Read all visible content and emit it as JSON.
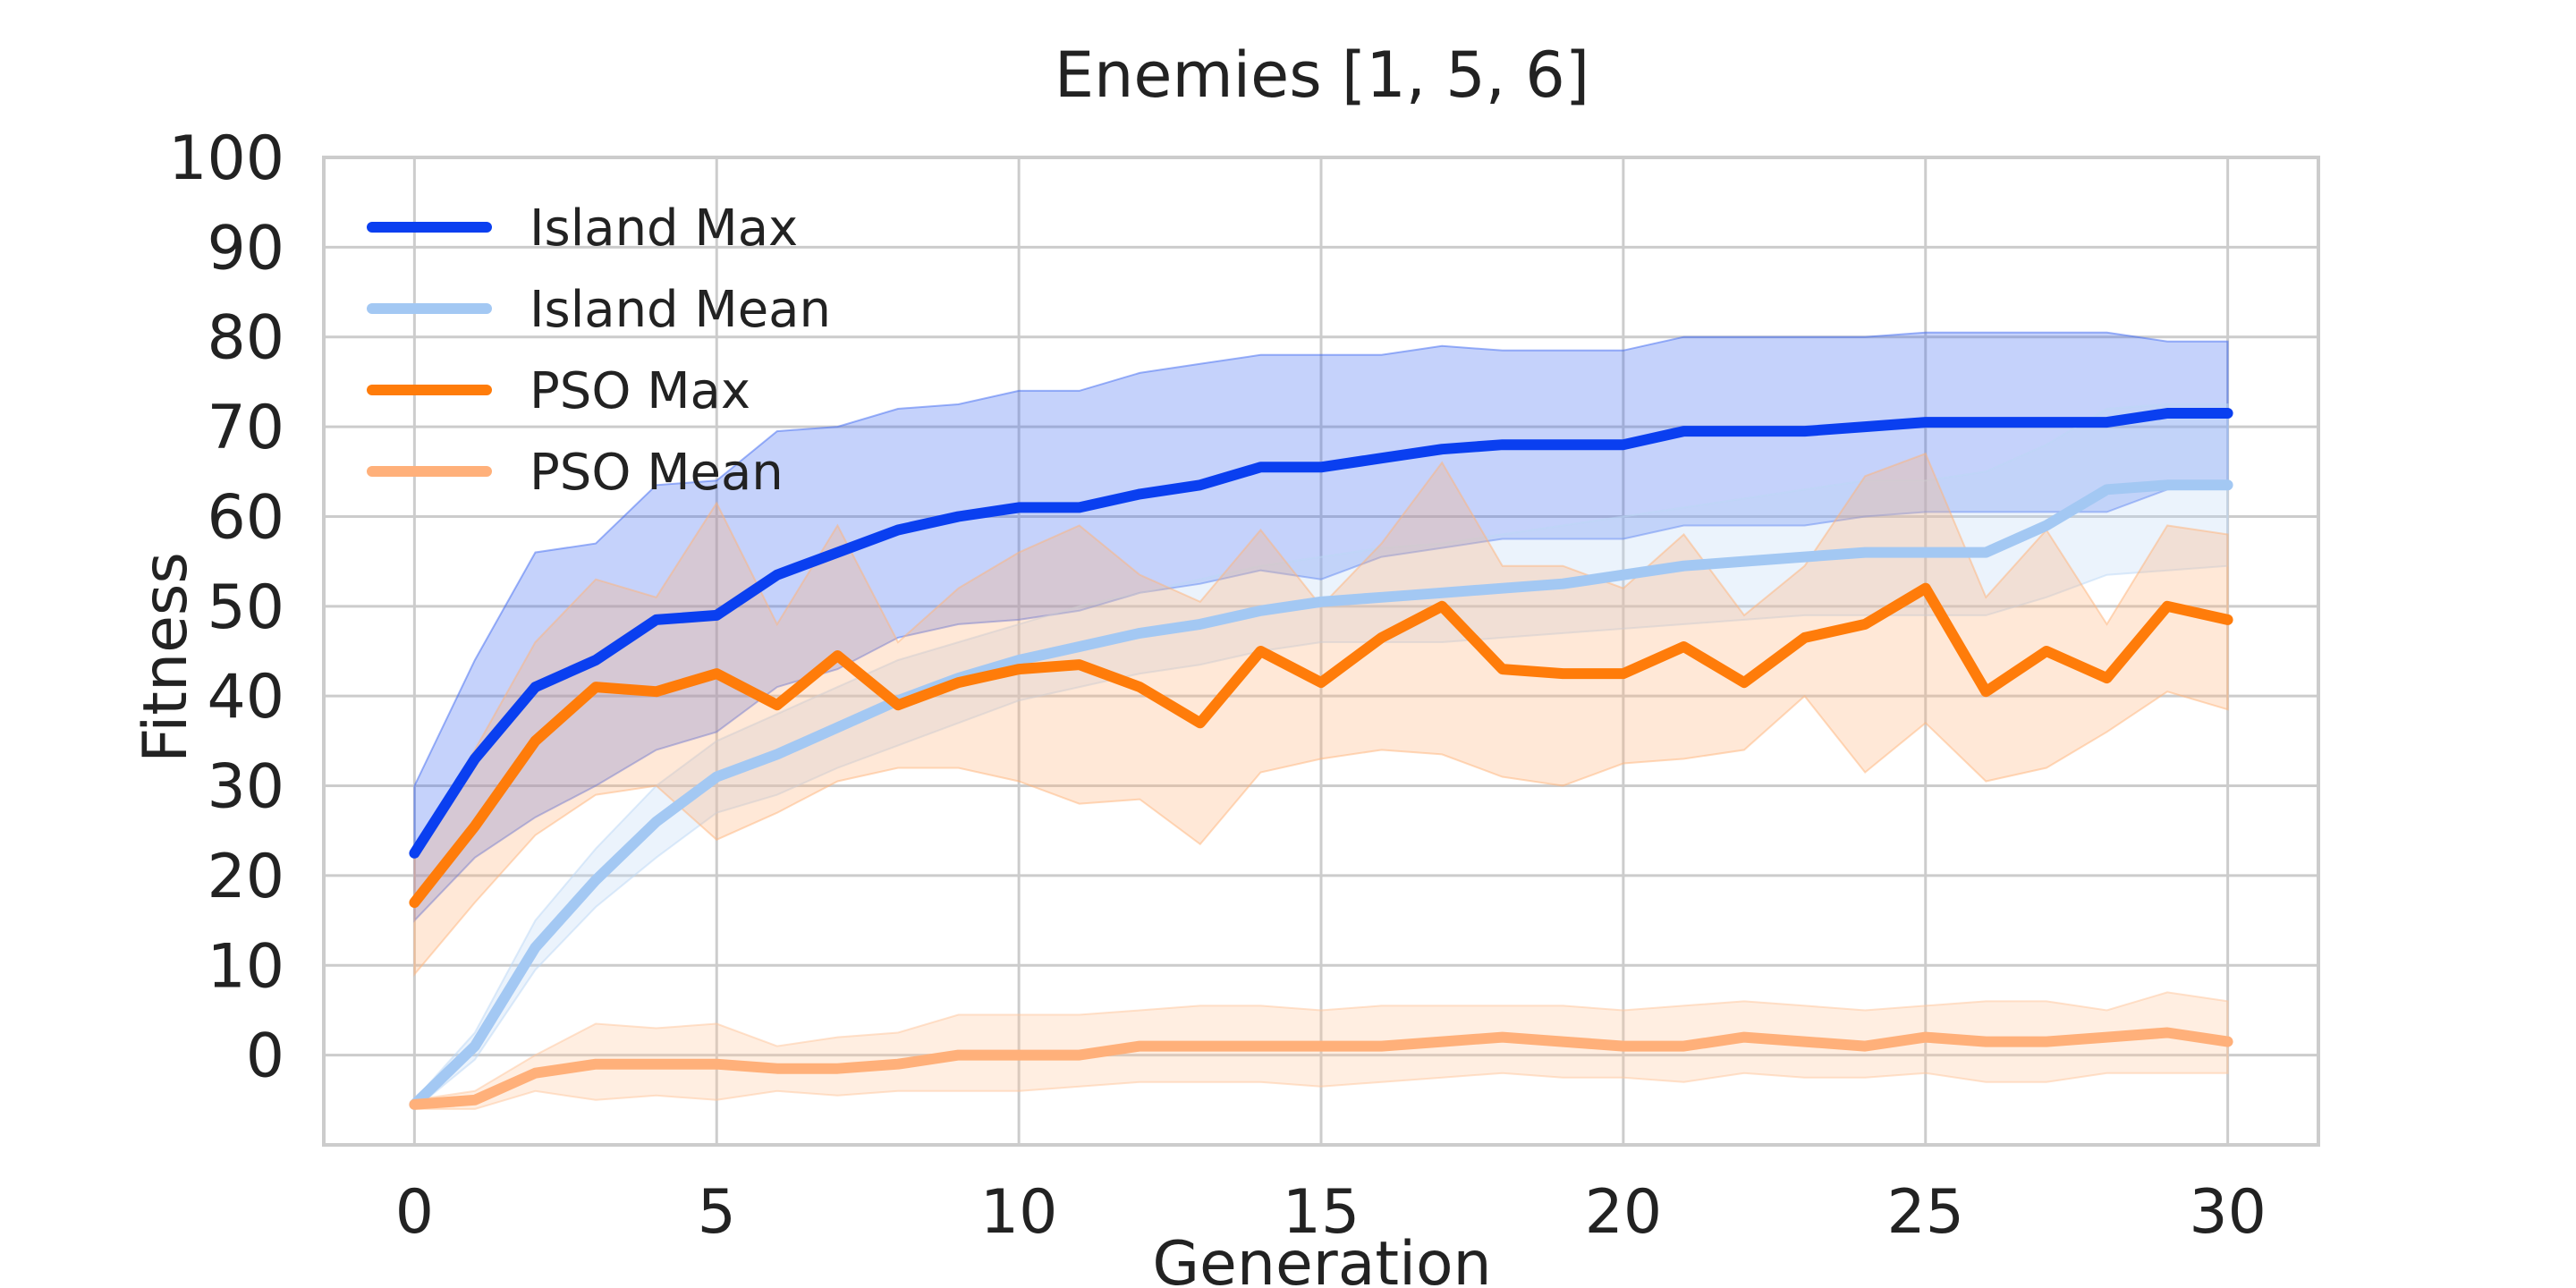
{
  "chart_data": {
    "type": "line",
    "title": "Enemies [1, 5, 6]",
    "xlabel": "Generation",
    "ylabel": "Fitness",
    "xlim": [
      -1.5,
      31.5
    ],
    "ylim": [
      -10,
      100
    ],
    "xticks": [
      0,
      5,
      10,
      15,
      20,
      25,
      30
    ],
    "yticks": [
      0,
      10,
      20,
      30,
      40,
      50,
      60,
      70,
      80,
      90,
      100
    ],
    "grid": true,
    "legend_position": "top-left",
    "x": [
      0,
      1,
      2,
      3,
      4,
      5,
      6,
      7,
      8,
      9,
      10,
      11,
      12,
      13,
      14,
      15,
      16,
      17,
      18,
      19,
      20,
      21,
      22,
      23,
      24,
      25,
      26,
      27,
      28,
      29,
      30
    ],
    "series": [
      {
        "name": "Island Max",
        "color": "#0a3ff0",
        "band_color": "#3f6af2",
        "values": [
          22.5,
          33,
          41,
          44,
          48.5,
          49,
          53.5,
          56,
          58.5,
          60,
          61,
          61,
          62.5,
          63.5,
          65.5,
          65.5,
          66.5,
          67.5,
          68,
          68,
          68,
          69.5,
          69.5,
          69.5,
          70,
          70.5,
          70.5,
          70.5,
          70.5,
          71.5,
          71.5
        ],
        "upper": [
          30,
          44,
          56,
          57,
          63.5,
          64,
          69.5,
          70,
          72,
          72.5,
          74,
          74,
          76,
          77,
          78,
          78,
          78,
          79,
          78.5,
          78.5,
          78.5,
          80,
          80,
          80,
          80,
          80.5,
          80.5,
          80.5,
          80.5,
          79.5,
          79.5
        ],
        "lower": [
          15,
          22,
          26.5,
          30,
          34,
          36,
          41,
          43,
          46.5,
          48,
          48.5,
          49.5,
          51.5,
          52.5,
          54,
          53,
          55.5,
          56.5,
          57.5,
          57.5,
          57.5,
          59,
          59,
          59,
          60,
          60.5,
          60.5,
          60.5,
          60.5,
          63,
          63.5
        ]
      },
      {
        "name": "Island Mean",
        "color": "#a3c8f3",
        "band_color": "#bcd7f5",
        "values": [
          -5.5,
          1,
          12,
          19.5,
          26,
          31,
          33.5,
          36.5,
          39.5,
          42,
          44,
          45.5,
          47,
          48,
          49.5,
          50.5,
          51,
          51.5,
          52,
          52.5,
          53.5,
          54.5,
          55,
          55.5,
          56,
          56,
          56,
          59,
          63,
          63.5,
          63.5
        ],
        "upper": [
          -5,
          2.5,
          15,
          23,
          30,
          35,
          38,
          41,
          44,
          46,
          48,
          50,
          51.5,
          53,
          54.5,
          55.5,
          56.5,
          57,
          58,
          59,
          60,
          61,
          62,
          63,
          64,
          64,
          65,
          68,
          72,
          72.5,
          72.5
        ],
        "lower": [
          -6,
          -0.5,
          9.5,
          16.5,
          22,
          27,
          29,
          32,
          34.5,
          37,
          39.5,
          41,
          42.5,
          43.5,
          45,
          46,
          46,
          46,
          46.5,
          47,
          47.5,
          48,
          48.5,
          49,
          49,
          49,
          49,
          51,
          53.5,
          54,
          54.5
        ]
      },
      {
        "name": "PSO Max",
        "color": "#ff7c0a",
        "band_color": "#ffb47a",
        "values": [
          17,
          25.5,
          35,
          41,
          40.5,
          42.5,
          39,
          44.5,
          39,
          41.5,
          43,
          43.5,
          41,
          37,
          45,
          41.5,
          46.5,
          50,
          43,
          42.5,
          42.5,
          45.5,
          41.5,
          46.5,
          48,
          52,
          40.5,
          45,
          42,
          50,
          48.5
        ],
        "upper": [
          23,
          34,
          46,
          53,
          51,
          61.5,
          48,
          59,
          46,
          52,
          56,
          59,
          53.5,
          50.5,
          58.5,
          50,
          57,
          66,
          54.5,
          54.5,
          52,
          58,
          49,
          54.5,
          64.5,
          67,
          51,
          58.5,
          48,
          59,
          58
        ],
        "lower": [
          9,
          17,
          24.5,
          29,
          30,
          24,
          27,
          30.5,
          32,
          32,
          30.5,
          28,
          28.5,
          23.5,
          31.5,
          33,
          34,
          33.5,
          31,
          30,
          32.5,
          33,
          34,
          40,
          31.5,
          37,
          30.5,
          32,
          36,
          40.5,
          38.5
        ]
      },
      {
        "name": "PSO Mean",
        "color": "#ffb07a",
        "band_color": "#ffc69c",
        "values": [
          -5.5,
          -5,
          -2,
          -1,
          -1,
          -1,
          -1.5,
          -1.5,
          -1,
          0,
          0,
          0,
          1,
          1,
          1,
          1,
          1,
          1.5,
          2,
          1.5,
          1,
          1,
          2,
          1.5,
          1,
          2,
          1.5,
          1.5,
          2,
          2.5,
          1.5
        ],
        "upper": [
          -5,
          -4,
          0,
          3.5,
          3,
          3.5,
          1,
          2,
          2.5,
          4.5,
          4.5,
          4.5,
          5,
          5.5,
          5.5,
          5,
          5.5,
          5.5,
          5.5,
          5.5,
          5,
          5.5,
          6,
          5.5,
          5,
          5.5,
          6,
          6,
          5,
          7,
          6
        ],
        "lower": [
          -6,
          -6,
          -4,
          -5,
          -4.5,
          -5,
          -4,
          -4.5,
          -4,
          -4,
          -4,
          -3.5,
          -3,
          -3,
          -3,
          -3.5,
          -3,
          -2.5,
          -2,
          -2.5,
          -2.5,
          -3,
          -2,
          -2.5,
          -2.5,
          -2,
          -3,
          -3,
          -2,
          -2,
          -2
        ]
      }
    ]
  }
}
